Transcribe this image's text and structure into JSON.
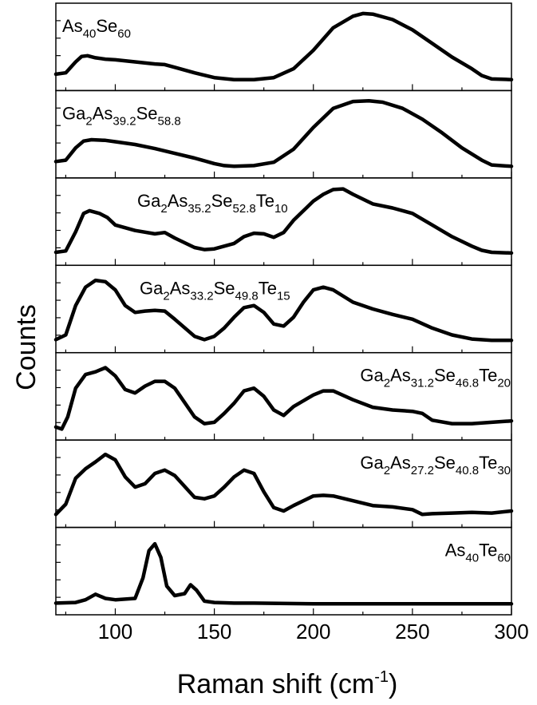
{
  "chart_data": {
    "type": "line",
    "xlabel_main": "Raman shift (cm",
    "xlabel_sup": "-1",
    "xlabel_close": ")",
    "ylabel": "Counts",
    "xlim": [
      70,
      300
    ],
    "xticks": [
      "100",
      "150",
      "200",
      "250",
      "300"
    ],
    "xtick_values": [
      100,
      150,
      200,
      250,
      300
    ],
    "series": [
      {
        "label_parts": [
          {
            "t": "As"
          },
          {
            "t": "40",
            "sub": true
          },
          {
            "t": "Se"
          },
          {
            "t": "60",
            "sub": true
          }
        ],
        "label_anchor": "start",
        "label_x": 78,
        "points": [
          [
            70,
            0.1
          ],
          [
            75,
            0.12
          ],
          [
            80,
            0.28
          ],
          [
            83,
            0.36
          ],
          [
            86,
            0.37
          ],
          [
            90,
            0.34
          ],
          [
            95,
            0.32
          ],
          [
            100,
            0.31
          ],
          [
            110,
            0.28
          ],
          [
            120,
            0.25
          ],
          [
            125,
            0.24
          ],
          [
            130,
            0.2
          ],
          [
            140,
            0.12
          ],
          [
            150,
            0.05
          ],
          [
            160,
            0.02
          ],
          [
            170,
            0.02
          ],
          [
            180,
            0.05
          ],
          [
            190,
            0.18
          ],
          [
            200,
            0.45
          ],
          [
            210,
            0.78
          ],
          [
            220,
            0.95
          ],
          [
            225,
            0.99
          ],
          [
            230,
            0.98
          ],
          [
            240,
            0.9
          ],
          [
            250,
            0.75
          ],
          [
            260,
            0.55
          ],
          [
            270,
            0.35
          ],
          [
            280,
            0.18
          ],
          [
            285,
            0.08
          ],
          [
            290,
            0.03
          ],
          [
            300,
            0.02
          ]
        ]
      },
      {
        "label_parts": [
          {
            "t": "Ga"
          },
          {
            "t": "2",
            "sub": true
          },
          {
            "t": "As"
          },
          {
            "t": "39.2",
            "sub": true
          },
          {
            "t": "Se"
          },
          {
            "t": "58.8",
            "sub": true
          }
        ],
        "label_anchor": "start",
        "label_x": 78,
        "points": [
          [
            70,
            0.1
          ],
          [
            75,
            0.12
          ],
          [
            80,
            0.3
          ],
          [
            84,
            0.4
          ],
          [
            88,
            0.42
          ],
          [
            95,
            0.41
          ],
          [
            100,
            0.39
          ],
          [
            110,
            0.35
          ],
          [
            120,
            0.29
          ],
          [
            130,
            0.22
          ],
          [
            140,
            0.15
          ],
          [
            150,
            0.07
          ],
          [
            155,
            0.04
          ],
          [
            160,
            0.03
          ],
          [
            170,
            0.04
          ],
          [
            180,
            0.09
          ],
          [
            190,
            0.28
          ],
          [
            200,
            0.6
          ],
          [
            210,
            0.88
          ],
          [
            220,
            0.98
          ],
          [
            228,
            0.99
          ],
          [
            235,
            0.97
          ],
          [
            245,
            0.88
          ],
          [
            255,
            0.72
          ],
          [
            265,
            0.52
          ],
          [
            275,
            0.3
          ],
          [
            285,
            0.12
          ],
          [
            290,
            0.05
          ],
          [
            300,
            0.03
          ]
        ]
      },
      {
        "label_parts": [
          {
            "t": "Ga"
          },
          {
            "t": "2",
            "sub": true
          },
          {
            "t": "As"
          },
          {
            "t": "35.2",
            "sub": true
          },
          {
            "t": "Se"
          },
          {
            "t": "52.8",
            "sub": true
          },
          {
            "t": "Te"
          },
          {
            "t": "10",
            "sub": true
          }
        ],
        "label_anchor": "start",
        "label_x": 172,
        "points": [
          [
            70,
            0.05
          ],
          [
            75,
            0.07
          ],
          [
            80,
            0.35
          ],
          [
            84,
            0.62
          ],
          [
            87,
            0.66
          ],
          [
            92,
            0.62
          ],
          [
            96,
            0.56
          ],
          [
            100,
            0.45
          ],
          [
            110,
            0.37
          ],
          [
            120,
            0.32
          ],
          [
            125,
            0.34
          ],
          [
            130,
            0.26
          ],
          [
            140,
            0.12
          ],
          [
            145,
            0.09
          ],
          [
            150,
            0.1
          ],
          [
            160,
            0.18
          ],
          [
            165,
            0.28
          ],
          [
            170,
            0.33
          ],
          [
            175,
            0.32
          ],
          [
            180,
            0.27
          ],
          [
            185,
            0.34
          ],
          [
            190,
            0.52
          ],
          [
            200,
            0.8
          ],
          [
            205,
            0.9
          ],
          [
            210,
            0.97
          ],
          [
            215,
            0.98
          ],
          [
            220,
            0.9
          ],
          [
            230,
            0.76
          ],
          [
            240,
            0.7
          ],
          [
            250,
            0.62
          ],
          [
            260,
            0.45
          ],
          [
            270,
            0.28
          ],
          [
            280,
            0.14
          ],
          [
            285,
            0.08
          ],
          [
            290,
            0.05
          ],
          [
            300,
            0.04
          ]
        ]
      },
      {
        "label_parts": [
          {
            "t": "Ga"
          },
          {
            "t": "2",
            "sub": true
          },
          {
            "t": "As"
          },
          {
            "t": "33.2",
            "sub": true
          },
          {
            "t": "Se"
          },
          {
            "t": "49.8",
            "sub": true
          },
          {
            "t": "Te"
          },
          {
            "t": "15",
            "sub": true
          }
        ],
        "label_anchor": "start",
        "label_x": 175,
        "points": [
          [
            70,
            0.05
          ],
          [
            75,
            0.12
          ],
          [
            80,
            0.55
          ],
          [
            85,
            0.82
          ],
          [
            90,
            0.92
          ],
          [
            95,
            0.9
          ],
          [
            100,
            0.78
          ],
          [
            105,
            0.55
          ],
          [
            110,
            0.45
          ],
          [
            115,
            0.47
          ],
          [
            120,
            0.48
          ],
          [
            125,
            0.47
          ],
          [
            130,
            0.35
          ],
          [
            140,
            0.1
          ],
          [
            145,
            0.05
          ],
          [
            150,
            0.1
          ],
          [
            155,
            0.22
          ],
          [
            160,
            0.38
          ],
          [
            165,
            0.52
          ],
          [
            170,
            0.55
          ],
          [
            175,
            0.45
          ],
          [
            180,
            0.28
          ],
          [
            185,
            0.25
          ],
          [
            190,
            0.38
          ],
          [
            195,
            0.6
          ],
          [
            200,
            0.78
          ],
          [
            205,
            0.82
          ],
          [
            210,
            0.78
          ],
          [
            220,
            0.6
          ],
          [
            230,
            0.5
          ],
          [
            240,
            0.42
          ],
          [
            250,
            0.35
          ],
          [
            260,
            0.22
          ],
          [
            270,
            0.12
          ],
          [
            280,
            0.06
          ],
          [
            290,
            0.04
          ],
          [
            300,
            0.04
          ]
        ]
      },
      {
        "label_parts": [
          {
            "t": "Ga"
          },
          {
            "t": "2",
            "sub": true
          },
          {
            "t": "As"
          },
          {
            "t": "31.2",
            "sub": true
          },
          {
            "t": "Se"
          },
          {
            "t": "46.8",
            "sub": true
          },
          {
            "t": "Te"
          },
          {
            "t": "20",
            "sub": true
          }
        ],
        "label_anchor": "end",
        "label_x": 640,
        "points": [
          [
            70,
            0.05
          ],
          [
            73,
            0.02
          ],
          [
            76,
            0.2
          ],
          [
            80,
            0.62
          ],
          [
            85,
            0.82
          ],
          [
            90,
            0.86
          ],
          [
            95,
            0.92
          ],
          [
            100,
            0.8
          ],
          [
            105,
            0.6
          ],
          [
            110,
            0.55
          ],
          [
            115,
            0.65
          ],
          [
            120,
            0.72
          ],
          [
            125,
            0.72
          ],
          [
            130,
            0.62
          ],
          [
            140,
            0.2
          ],
          [
            145,
            0.1
          ],
          [
            150,
            0.12
          ],
          [
            155,
            0.25
          ],
          [
            160,
            0.4
          ],
          [
            165,
            0.58
          ],
          [
            170,
            0.62
          ],
          [
            175,
            0.5
          ],
          [
            180,
            0.3
          ],
          [
            185,
            0.22
          ],
          [
            190,
            0.35
          ],
          [
            200,
            0.52
          ],
          [
            205,
            0.58
          ],
          [
            210,
            0.58
          ],
          [
            220,
            0.45
          ],
          [
            230,
            0.34
          ],
          [
            240,
            0.3
          ],
          [
            250,
            0.28
          ],
          [
            255,
            0.25
          ],
          [
            260,
            0.15
          ],
          [
            270,
            0.1
          ],
          [
            280,
            0.1
          ],
          [
            290,
            0.12
          ],
          [
            300,
            0.14
          ]
        ]
      },
      {
        "label_parts": [
          {
            "t": "Ga"
          },
          {
            "t": "2",
            "sub": true
          },
          {
            "t": "As"
          },
          {
            "t": "27.2",
            "sub": true
          },
          {
            "t": "Se"
          },
          {
            "t": "40.8",
            "sub": true
          },
          {
            "t": "Te"
          },
          {
            "t": "30",
            "sub": true
          }
        ],
        "label_anchor": "end",
        "label_x": 640,
        "points": [
          [
            70,
            0.05
          ],
          [
            75,
            0.2
          ],
          [
            80,
            0.58
          ],
          [
            85,
            0.72
          ],
          [
            90,
            0.82
          ],
          [
            95,
            0.93
          ],
          [
            100,
            0.85
          ],
          [
            105,
            0.6
          ],
          [
            110,
            0.45
          ],
          [
            115,
            0.5
          ],
          [
            120,
            0.65
          ],
          [
            125,
            0.7
          ],
          [
            130,
            0.62
          ],
          [
            140,
            0.3
          ],
          [
            145,
            0.28
          ],
          [
            150,
            0.32
          ],
          [
            155,
            0.45
          ],
          [
            160,
            0.6
          ],
          [
            165,
            0.7
          ],
          [
            170,
            0.65
          ],
          [
            175,
            0.38
          ],
          [
            180,
            0.15
          ],
          [
            185,
            0.1
          ],
          [
            190,
            0.18
          ],
          [
            200,
            0.32
          ],
          [
            205,
            0.33
          ],
          [
            210,
            0.32
          ],
          [
            220,
            0.25
          ],
          [
            230,
            0.18
          ],
          [
            240,
            0.16
          ],
          [
            250,
            0.12
          ],
          [
            255,
            0.05
          ],
          [
            260,
            0.06
          ],
          [
            270,
            0.07
          ],
          [
            280,
            0.08
          ],
          [
            290,
            0.07
          ],
          [
            300,
            0.1
          ]
        ]
      },
      {
        "label_parts": [
          {
            "t": "As"
          },
          {
            "t": "40",
            "sub": true
          },
          {
            "t": "Te"
          },
          {
            "t": "60",
            "sub": true
          }
        ],
        "label_anchor": "end",
        "label_x": 640,
        "points": [
          [
            70,
            0.03
          ],
          [
            80,
            0.04
          ],
          [
            85,
            0.08
          ],
          [
            90,
            0.16
          ],
          [
            95,
            0.1
          ],
          [
            100,
            0.08
          ],
          [
            110,
            0.1
          ],
          [
            114,
            0.4
          ],
          [
            117,
            0.8
          ],
          [
            120,
            0.9
          ],
          [
            123,
            0.7
          ],
          [
            126,
            0.28
          ],
          [
            130,
            0.14
          ],
          [
            135,
            0.17
          ],
          [
            138,
            0.3
          ],
          [
            141,
            0.22
          ],
          [
            145,
            0.06
          ],
          [
            150,
            0.04
          ],
          [
            160,
            0.03
          ],
          [
            170,
            0.03
          ],
          [
            200,
            0.02
          ],
          [
            250,
            0.02
          ],
          [
            300,
            0.02
          ]
        ]
      }
    ]
  }
}
